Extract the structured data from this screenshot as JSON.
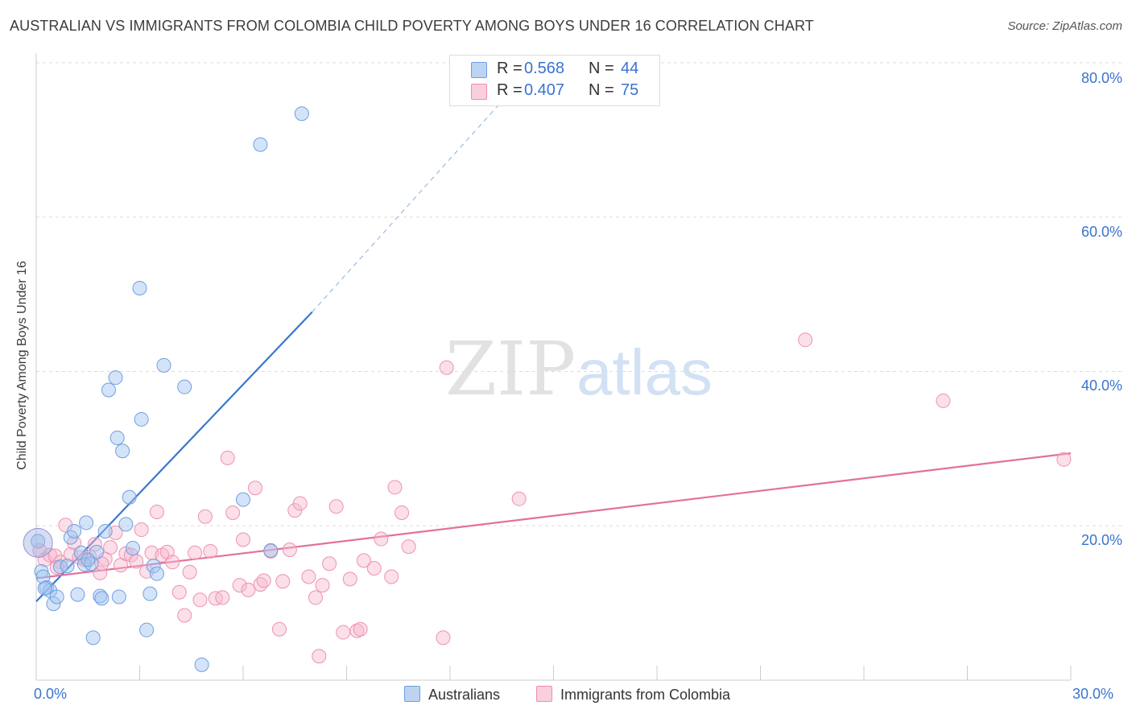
{
  "title": "AUSTRALIAN VS IMMIGRANTS FROM COLOMBIA CHILD POVERTY AMONG BOYS UNDER 16 CORRELATION CHART",
  "source": "Source: ZipAtlas.com",
  "watermark": {
    "zip": "ZIP",
    "atlas": "atlas"
  },
  "legend": {
    "r_label": "R =",
    "n_label": "N =",
    "australians": {
      "r": "0.568",
      "n": "44",
      "color": "#6f9fe0"
    },
    "colombia": {
      "r": "0.407",
      "n": "75",
      "color": "#f08cb0"
    }
  },
  "chart_data": {
    "type": "scatter",
    "title": "AUSTRALIAN VS IMMIGRANTS FROM COLOMBIA CHILD POVERTY AMONG BOYS UNDER 16 CORRELATION CHART",
    "xlabel": "",
    "ylabel": "Child Poverty Among Boys Under 16",
    "xlim": [
      0,
      30
    ],
    "ylim": [
      0,
      80
    ],
    "x_ticks": [
      "0.0%",
      "30.0%"
    ],
    "y_ticks": [
      "20.0%",
      "40.0%",
      "60.0%",
      "80.0%"
    ],
    "y_tick_values": [
      20,
      40,
      60,
      80
    ],
    "grid": true,
    "legend_placement": "top-center",
    "series": [
      {
        "name": "Australians",
        "color": "#6f9fe0",
        "trend": {
          "x0": 0,
          "y0": 10.2,
          "x1": 8.0,
          "y1": 47.7,
          "dash_x1": 13.5,
          "dash_y1": 75.0
        },
        "points": [
          [
            0.05,
            18.0
          ],
          [
            0.15,
            14.1
          ],
          [
            0.2,
            13.4
          ],
          [
            0.3,
            12.0
          ],
          [
            0.4,
            11.6
          ],
          [
            0.5,
            9.9
          ],
          [
            0.6,
            10.8
          ],
          [
            0.7,
            14.7
          ],
          [
            0.9,
            14.8
          ],
          [
            1.0,
            18.5
          ],
          [
            1.1,
            19.3
          ],
          [
            1.2,
            11.1
          ],
          [
            1.3,
            16.5
          ],
          [
            1.4,
            15.0
          ],
          [
            1.45,
            20.4
          ],
          [
            1.6,
            15.1
          ],
          [
            1.65,
            5.5
          ],
          [
            1.75,
            16.6
          ],
          [
            1.85,
            10.9
          ],
          [
            1.9,
            10.6
          ],
          [
            2.0,
            19.3
          ],
          [
            2.1,
            37.6
          ],
          [
            2.3,
            39.2
          ],
          [
            2.35,
            31.4
          ],
          [
            2.4,
            10.8
          ],
          [
            2.5,
            29.7
          ],
          [
            2.6,
            20.2
          ],
          [
            2.7,
            23.7
          ],
          [
            2.8,
            17.1
          ],
          [
            3.0,
            50.8
          ],
          [
            3.05,
            33.8
          ],
          [
            3.2,
            6.5
          ],
          [
            3.3,
            11.2
          ],
          [
            3.4,
            14.8
          ],
          [
            3.5,
            13.8
          ],
          [
            3.7,
            40.8
          ],
          [
            4.3,
            38.0
          ],
          [
            4.8,
            2.0
          ],
          [
            6.0,
            23.4
          ],
          [
            6.5,
            69.4
          ],
          [
            6.8,
            16.8
          ],
          [
            7.7,
            73.4
          ],
          [
            0.25,
            11.9
          ],
          [
            1.5,
            15.6
          ]
        ]
      },
      {
        "name": "Immigrants from Colombia",
        "color": "#f08cb0",
        "trend": {
          "x0": 0,
          "y0": 13.2,
          "x1": 30,
          "y1": 29.4
        },
        "points": [
          [
            0.1,
            16.8
          ],
          [
            0.25,
            15.6
          ],
          [
            0.4,
            16.2
          ],
          [
            0.55,
            16.1
          ],
          [
            0.7,
            15.3
          ],
          [
            0.85,
            20.1
          ],
          [
            1.0,
            16.3
          ],
          [
            1.1,
            17.8
          ],
          [
            1.25,
            15.9
          ],
          [
            1.4,
            15.6
          ],
          [
            1.55,
            16.0
          ],
          [
            1.7,
            17.6
          ],
          [
            1.85,
            13.9
          ],
          [
            2.0,
            15.7
          ],
          [
            2.15,
            17.2
          ],
          [
            2.3,
            19.1
          ],
          [
            2.45,
            14.9
          ],
          [
            2.6,
            16.4
          ],
          [
            2.75,
            16.2
          ],
          [
            2.9,
            15.4
          ],
          [
            3.05,
            19.5
          ],
          [
            3.2,
            14.1
          ],
          [
            3.35,
            16.5
          ],
          [
            3.5,
            21.8
          ],
          [
            3.65,
            16.2
          ],
          [
            3.8,
            16.6
          ],
          [
            3.95,
            15.3
          ],
          [
            4.15,
            11.4
          ],
          [
            4.3,
            8.4
          ],
          [
            4.45,
            14.0
          ],
          [
            4.6,
            16.5
          ],
          [
            4.75,
            10.4
          ],
          [
            4.9,
            21.2
          ],
          [
            5.05,
            16.7
          ],
          [
            5.2,
            10.6
          ],
          [
            5.4,
            10.7
          ],
          [
            5.55,
            28.8
          ],
          [
            5.7,
            21.7
          ],
          [
            5.9,
            12.3
          ],
          [
            6.0,
            18.2
          ],
          [
            6.15,
            11.7
          ],
          [
            6.35,
            24.9
          ],
          [
            6.5,
            12.4
          ],
          [
            6.6,
            12.9
          ],
          [
            6.8,
            16.7
          ],
          [
            7.05,
            6.6
          ],
          [
            7.15,
            12.8
          ],
          [
            7.35,
            16.9
          ],
          [
            7.5,
            22.0
          ],
          [
            7.65,
            22.9
          ],
          [
            7.9,
            13.4
          ],
          [
            8.1,
            10.7
          ],
          [
            8.2,
            3.1
          ],
          [
            8.3,
            12.3
          ],
          [
            8.5,
            15.1
          ],
          [
            8.7,
            22.5
          ],
          [
            8.9,
            6.2
          ],
          [
            9.1,
            13.1
          ],
          [
            9.3,
            6.4
          ],
          [
            9.4,
            6.6
          ],
          [
            9.5,
            15.5
          ],
          [
            9.8,
            14.5
          ],
          [
            10.0,
            18.3
          ],
          [
            10.3,
            13.4
          ],
          [
            10.4,
            25.0
          ],
          [
            10.6,
            21.7
          ],
          [
            10.8,
            17.3
          ],
          [
            11.8,
            5.5
          ],
          [
            11.9,
            40.5
          ],
          [
            14.0,
            23.5
          ],
          [
            22.3,
            44.1
          ],
          [
            26.3,
            36.2
          ],
          [
            29.8,
            28.6
          ],
          [
            0.6,
            14.6
          ],
          [
            1.9,
            15.1
          ]
        ]
      }
    ]
  }
}
